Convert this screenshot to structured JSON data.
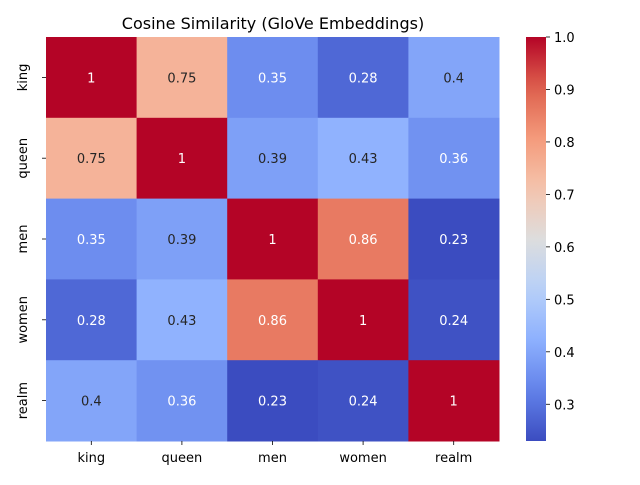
{
  "chart_data": {
    "type": "heatmap",
    "title": "Cosine Similarity (GloVe Embeddings)",
    "xlabel": "",
    "ylabel": "",
    "x_categories": [
      "king",
      "queen",
      "men",
      "women",
      "realm"
    ],
    "y_categories": [
      "king",
      "queen",
      "men",
      "women",
      "realm"
    ],
    "values": [
      [
        1,
        0.75,
        0.35,
        0.28,
        0.4
      ],
      [
        0.75,
        1,
        0.39,
        0.43,
        0.36
      ],
      [
        0.35,
        0.39,
        1,
        0.86,
        0.23
      ],
      [
        0.28,
        0.43,
        0.86,
        1,
        0.24
      ],
      [
        0.4,
        0.36,
        0.23,
        0.24,
        1
      ]
    ],
    "labels": [
      [
        "1",
        "0.75",
        "0.35",
        "0.28",
        "0.4"
      ],
      [
        "0.75",
        "1",
        "0.39",
        "0.43",
        "0.36"
      ],
      [
        "0.35",
        "0.39",
        "1",
        "0.86",
        "0.23"
      ],
      [
        "0.28",
        "0.43",
        "0.86",
        "1",
        "0.24"
      ],
      [
        "0.4",
        "0.36",
        "0.23",
        "0.24",
        "1"
      ]
    ],
    "colormap": "coolwarm",
    "vmin": 0.23,
    "vmax": 1.0,
    "colorbar_ticks": [
      0.3,
      0.4,
      0.5,
      0.6,
      0.7,
      0.8,
      0.9,
      1.0
    ],
    "colorbar_tick_labels": [
      "0.3",
      "0.4",
      "0.5",
      "0.6",
      "0.7",
      "0.8",
      "0.9",
      "1.0"
    ]
  }
}
